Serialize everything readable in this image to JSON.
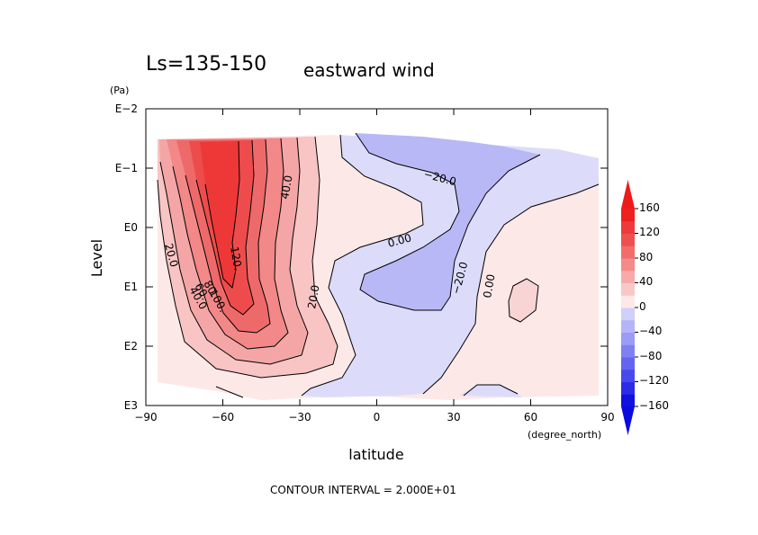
{
  "chart_data": {
    "type": "heatmap",
    "title": "Ls=135-150",
    "subtitle": "eastward wind",
    "xlabel": "latitude",
    "x_units": "(degree_north)",
    "ylabel": "Level",
    "y_units": "(Pa)",
    "x_ticks": [
      "−90",
      "−60",
      "−30",
      "0",
      "30",
      "60",
      "90"
    ],
    "y_ticks": [
      "E−2",
      "E−1",
      "E0",
      "E1",
      "E2",
      "E3"
    ],
    "xlim": [
      -90,
      90
    ],
    "ylim": [
      1000,
      0.01
    ],
    "y_scale": "log",
    "contour_interval": 20,
    "contour_labels": [
      "120.",
      "100.",
      "80.",
      "60.",
      "40.0",
      "20.0",
      "40.0",
      "20.0",
      "0.00",
      "−20.0",
      "−20.0",
      "0.00"
    ],
    "colorbar": {
      "ticks": [
        "160",
        "120",
        "80",
        "40",
        "0",
        "−40",
        "−80",
        "−120",
        "−160"
      ],
      "levels": [
        -160,
        -140,
        -120,
        -100,
        -80,
        -60,
        -40,
        -20,
        0,
        20,
        40,
        60,
        80,
        100,
        120,
        140,
        160
      ],
      "colors": [
        "#1010e0",
        "#2c2ce8",
        "#4848ee",
        "#6464f0",
        "#8080f4",
        "#9c9cf6",
        "#b4b4f8",
        "#d0d0fa",
        "#fde8e8",
        "#f8c8c8",
        "#f8aaaa",
        "#f48a8a",
        "#f26c6c",
        "#ee5050",
        "#ee3a3a",
        "#ee2020"
      ]
    },
    "footer": "CONTOUR INTERVAL = 2.000E+01"
  }
}
